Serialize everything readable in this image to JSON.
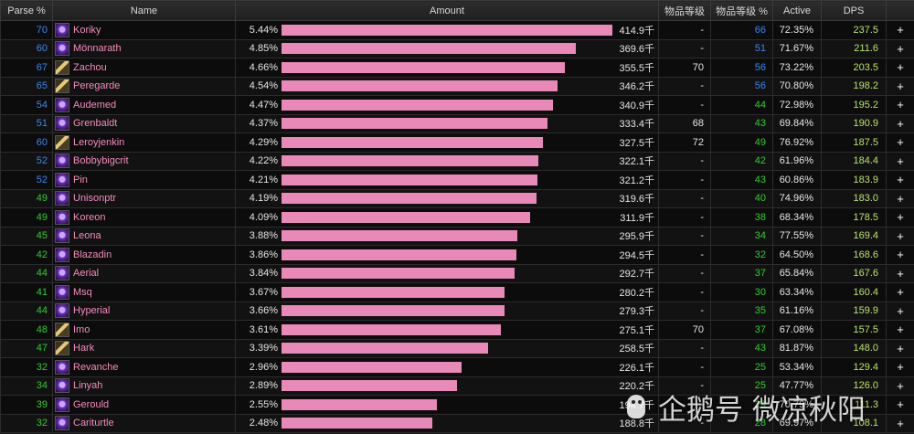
{
  "headers": {
    "parse": "Parse %",
    "name": "Name",
    "amount": "Amount",
    "ilvl": "物品等级",
    "ilvl_parse": "物品等级 %",
    "active": "Active",
    "dps": "DPS"
  },
  "rows": [
    {
      "parse": "70",
      "icon": "warlock-icon",
      "name": "Koriky",
      "pct": "5.44%",
      "bar_frac": 1.0,
      "total": "414.9千",
      "ilvl": "-",
      "ilvlp": "66",
      "active": "72.35%",
      "dps": "237.5",
      "plus": "+"
    },
    {
      "parse": "60",
      "icon": "warlock-icon",
      "name": "Mönnarath",
      "pct": "4.85%",
      "bar_frac": 0.8907,
      "total": "369.6千",
      "ilvl": "-",
      "ilvlp": "51",
      "active": "71.67%",
      "dps": "211.6",
      "plus": "+"
    },
    {
      "parse": "67",
      "icon": "paladin-icon",
      "name": "Zachou",
      "pct": "4.66%",
      "bar_frac": 0.8569,
      "total": "355.5千",
      "ilvl": "70",
      "ilvlp": "56",
      "active": "73.22%",
      "dps": "203.5",
      "plus": "+"
    },
    {
      "parse": "65",
      "icon": "paladin-icon",
      "name": "Peregarde",
      "pct": "4.54%",
      "bar_frac": 0.8345,
      "total": "346.2千",
      "ilvl": "-",
      "ilvlp": "56",
      "active": "70.80%",
      "dps": "198.2",
      "plus": "+"
    },
    {
      "parse": "54",
      "icon": "warlock-icon",
      "name": "Audemed",
      "pct": "4.47%",
      "bar_frac": 0.8216,
      "total": "340.9千",
      "ilvl": "-",
      "ilvlp": "44",
      "active": "72.98%",
      "dps": "195.2",
      "plus": "+"
    },
    {
      "parse": "51",
      "icon": "warlock-icon",
      "name": "Grenbaldt",
      "pct": "4.37%",
      "bar_frac": 0.8037,
      "total": "333.4千",
      "ilvl": "68",
      "ilvlp": "43",
      "active": "69.84%",
      "dps": "190.9",
      "plus": "+"
    },
    {
      "parse": "60",
      "icon": "paladin-icon",
      "name": "Leroyjenkin",
      "pct": "4.29%",
      "bar_frac": 0.7893,
      "total": "327.5千",
      "ilvl": "72",
      "ilvlp": "49",
      "active": "76.92%",
      "dps": "187.5",
      "plus": "+"
    },
    {
      "parse": "52",
      "icon": "warlock-icon",
      "name": "Bobbybigcrit",
      "pct": "4.22%",
      "bar_frac": 0.7764,
      "total": "322.1千",
      "ilvl": "-",
      "ilvlp": "42",
      "active": "61.96%",
      "dps": "184.4",
      "plus": "+"
    },
    {
      "parse": "52",
      "icon": "warlock-icon",
      "name": "Pin",
      "pct": "4.21%",
      "bar_frac": 0.7742,
      "total": "321.2千",
      "ilvl": "-",
      "ilvlp": "43",
      "active": "60.86%",
      "dps": "183.9",
      "plus": "+"
    },
    {
      "parse": "49",
      "icon": "warlock-icon",
      "name": "Unisonptr",
      "pct": "4.19%",
      "bar_frac": 0.7703,
      "total": "319.6千",
      "ilvl": "-",
      "ilvlp": "40",
      "active": "74.96%",
      "dps": "183.0",
      "plus": "+"
    },
    {
      "parse": "49",
      "icon": "warlock-icon",
      "name": "Koreon",
      "pct": "4.09%",
      "bar_frac": 0.7518,
      "total": "311.9千",
      "ilvl": "-",
      "ilvlp": "38",
      "active": "68.34%",
      "dps": "178.5",
      "plus": "+"
    },
    {
      "parse": "45",
      "icon": "warlock-icon",
      "name": "Leona",
      "pct": "3.88%",
      "bar_frac": 0.7134,
      "total": "295.9千",
      "ilvl": "-",
      "ilvlp": "34",
      "active": "77.55%",
      "dps": "169.4",
      "plus": "+"
    },
    {
      "parse": "42",
      "icon": "warlock-icon",
      "name": "Blazadin",
      "pct": "3.86%",
      "bar_frac": 0.7099,
      "total": "294.5千",
      "ilvl": "-",
      "ilvlp": "32",
      "active": "64.50%",
      "dps": "168.6",
      "plus": "+"
    },
    {
      "parse": "44",
      "icon": "warlock-icon",
      "name": "Aerial",
      "pct": "3.84%",
      "bar_frac": 0.7055,
      "total": "292.7千",
      "ilvl": "-",
      "ilvlp": "37",
      "active": "65.84%",
      "dps": "167.6",
      "plus": "+"
    },
    {
      "parse": "41",
      "icon": "warlock-icon",
      "name": "Msq",
      "pct": "3.67%",
      "bar_frac": 0.6754,
      "total": "280.2千",
      "ilvl": "-",
      "ilvlp": "30",
      "active": "63.34%",
      "dps": "160.4",
      "plus": "+"
    },
    {
      "parse": "44",
      "icon": "warlock-icon",
      "name": "Hyperial",
      "pct": "3.66%",
      "bar_frac": 0.6732,
      "total": "279.3千",
      "ilvl": "-",
      "ilvlp": "35",
      "active": "61.16%",
      "dps": "159.9",
      "plus": "+"
    },
    {
      "parse": "48",
      "icon": "paladin-icon",
      "name": "Imo",
      "pct": "3.61%",
      "bar_frac": 0.6631,
      "total": "275.1千",
      "ilvl": "70",
      "ilvlp": "37",
      "active": "67.08%",
      "dps": "157.5",
      "plus": "+"
    },
    {
      "parse": "47",
      "icon": "paladin-icon",
      "name": "Hark",
      "pct": "3.39%",
      "bar_frac": 0.6231,
      "total": "258.5千",
      "ilvl": "-",
      "ilvlp": "43",
      "active": "81.87%",
      "dps": "148.0",
      "plus": "+"
    },
    {
      "parse": "32",
      "icon": "warlock-icon",
      "name": "Revanche",
      "pct": "2.96%",
      "bar_frac": 0.545,
      "total": "226.1千",
      "ilvl": "-",
      "ilvlp": "25",
      "active": "53.34%",
      "dps": "129.4",
      "plus": "+"
    },
    {
      "parse": "34",
      "icon": "warlock-icon",
      "name": "Linyah",
      "pct": "2.89%",
      "bar_frac": 0.531,
      "total": "220.2千",
      "ilvl": "-",
      "ilvlp": "25",
      "active": "47.77%",
      "dps": "126.0",
      "plus": "+"
    },
    {
      "parse": "39",
      "icon": "warlock-icon",
      "name": "Gerould",
      "pct": "2.55%",
      "bar_frac": 0.469,
      "total": "194.7千",
      "ilvl": "-",
      "ilvlp": "29",
      "active": "70.79%",
      "dps": "111.3",
      "plus": "+"
    },
    {
      "parse": "32",
      "icon": "warlock-icon",
      "name": "Cariturtle",
      "pct": "2.48%",
      "bar_frac": 0.455,
      "total": "188.8千",
      "ilvl": "-",
      "ilvlp": "28",
      "active": "69.97%",
      "dps": "108.1",
      "plus": "+"
    }
  ],
  "colors": {
    "parse_blue": "#3a87f0",
    "parse_green": "#2fcf2f",
    "name_pink": "#f48cba",
    "bar_pink": "#e889b7",
    "dps_green": "#b9e36b"
  },
  "watermark": {
    "text": "企鹅号 微凉秋阳",
    "logo_icon": "penguin-logo-icon"
  }
}
